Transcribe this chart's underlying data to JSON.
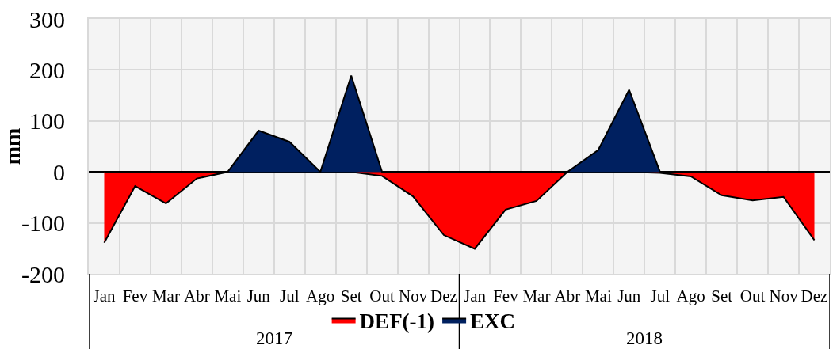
{
  "chart_data": {
    "type": "area",
    "ylabel": "mm",
    "categories": [
      "Jan",
      "Fev",
      "Mar",
      "Abr",
      "Mai",
      "Jun",
      "Jul",
      "Ago",
      "Set",
      "Out",
      "Nov",
      "Dez",
      "Jan",
      "Fev",
      "Mar",
      "Abr",
      "Mai",
      "Jun",
      "Jul",
      "Ago",
      "Set",
      "Out",
      "Nov",
      "Dez"
    ],
    "series": [
      {
        "name": "DEF(-1)",
        "color": "#ff0000",
        "values": [
          -139,
          -28,
          -62,
          -13,
          0,
          0,
          0,
          0,
          0,
          -8,
          -48,
          -124,
          -151,
          -74,
          -57,
          0,
          0,
          0,
          -2,
          -9,
          -46,
          -56,
          -49,
          -134
        ]
      },
      {
        "name": "EXC",
        "color": "#002060",
        "values": [
          0,
          0,
          0,
          0,
          0,
          81,
          59,
          0,
          189,
          0,
          0,
          0,
          0,
          0,
          0,
          0,
          43,
          161,
          0,
          0,
          0,
          0,
          0,
          0
        ]
      }
    ],
    "ylim": [
      -200,
      300
    ],
    "yticks": [
      -200,
      -100,
      0,
      100,
      200,
      300
    ],
    "grid": true,
    "legend": "bottom",
    "annotations": [
      "2017",
      "2018"
    ]
  }
}
